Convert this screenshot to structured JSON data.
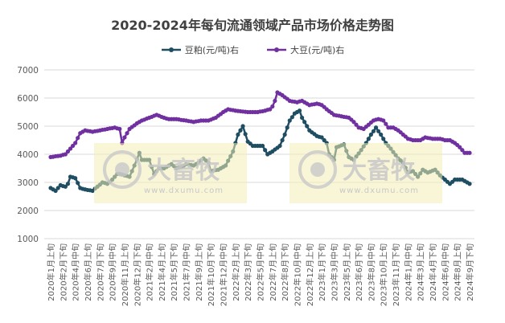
{
  "chart_data": {
    "type": "line",
    "title": "2020-2024年每旬流通领域产品市场价格走势图",
    "xlabel": "",
    "ylabel": "",
    "ylim": [
      1000,
      7000
    ],
    "y_ticks": [
      1000,
      2000,
      3000,
      4000,
      5000,
      6000,
      7000
    ],
    "grid": true,
    "legend": "top",
    "x_tick_every": 5,
    "x_tick_labels": [
      "2020年1月上旬",
      "2020年2月下旬",
      "2020年4月中旬",
      "2020年6月上旬",
      "2020年7月下旬",
      "2020年9月中旬",
      "2020年11月上旬",
      "2020年12月下旬",
      "2021年2月中旬",
      "2021年4月上旬",
      "2021年5月下旬",
      "2021年7月中旬",
      "2021年9月上旬",
      "2021年10月下旬",
      "2021年12月中旬",
      "2022年2月上旬",
      "2022年3月下旬",
      "2022年5月中旬",
      "2022年7月上旬",
      "2022年8月下旬",
      "2022年10月中旬",
      "2022年12月上旬",
      "2023年1月下旬",
      "2023年3月中旬",
      "2023年5月上旬",
      "2023年6月下旬",
      "2023年8月中旬",
      "2023年10月上旬",
      "2023年11月下旬",
      "2024年1月中旬",
      "2024年3月上旬",
      "2024年4月下旬",
      "2024年6月中旬",
      "2024年8月上旬",
      "2024年9月下旬"
    ],
    "series": [
      {
        "name": "豆粕(元/吨)右",
        "color": "#1f4e63",
        "values": [
          2800,
          2750,
          2700,
          2800,
          2900,
          2870,
          2850,
          2950,
          3200,
          3180,
          3150,
          2980,
          2800,
          2770,
          2750,
          2730,
          2720,
          2700,
          2780,
          2850,
          2920,
          3000,
          2980,
          2950,
          3020,
          3100,
          3200,
          3300,
          3300,
          3280,
          3250,
          3230,
          3200,
          3400,
          3600,
          3820,
          4050,
          3800,
          3800,
          3800,
          3800,
          3550,
          3300,
          3400,
          3500,
          3500,
          3500,
          3550,
          3600,
          3650,
          3580,
          3500,
          3520,
          3550,
          3600,
          3650,
          3630,
          3620,
          3600,
          3650,
          3700,
          3780,
          3850,
          3780,
          3700,
          3400,
          3420,
          3440,
          3450,
          3500,
          3550,
          3600,
          3770,
          3930,
          4100,
          4400,
          4700,
          4850,
          5000,
          4720,
          4450,
          4380,
          4300,
          4300,
          4300,
          4300,
          4300,
          4150,
          4000,
          4050,
          4100,
          4170,
          4230,
          4300,
          4500,
          4700,
          4950,
          5200,
          5320,
          5450,
          5500,
          5550,
          5300,
          5150,
          5000,
          4850,
          4780,
          4720,
          4650,
          4620,
          4600,
          4500,
          4400,
          4000,
          3900,
          3800,
          4250,
          4280,
          4320,
          4350,
          4120,
          3900,
          3850,
          3800,
          3920,
          4030,
          4150,
          4280,
          4400,
          4550,
          4700,
          4820,
          4950,
          4820,
          4700,
          4550,
          4400,
          4300,
          4200,
          4080,
          3970,
          3850,
          3780,
          3700,
          3520,
          3350,
          3380,
          3400,
          3300,
          3200,
          3320,
          3450,
          3400,
          3350,
          3380,
          3420,
          3450,
          3350,
          3250,
          3170,
          3100,
          3020,
          2950,
          3020,
          3100,
          3100,
          3100,
          3100,
          3050,
          3000,
          2950
        ]
      },
      {
        "name": "大豆(元/吨)右",
        "color": "#7030a0",
        "values": [
          3900,
          3910,
          3930,
          3940,
          3950,
          3980,
          4000,
          4100,
          4200,
          4300,
          4400,
          4580,
          4750,
          4800,
          4850,
          4830,
          4820,
          4800,
          4820,
          4830,
          4850,
          4870,
          4880,
          4900,
          4920,
          4930,
          4950,
          4920,
          4900,
          4400,
          4600,
          4750,
          4900,
          4970,
          5030,
          5100,
          5150,
          5200,
          5230,
          5270,
          5300,
          5330,
          5370,
          5400,
          5370,
          5330,
          5300,
          5270,
          5250,
          5250,
          5250,
          5250,
          5240,
          5220,
          5210,
          5200,
          5180,
          5170,
          5150,
          5170,
          5180,
          5200,
          5200,
          5200,
          5200,
          5230,
          5270,
          5300,
          5370,
          5430,
          5500,
          5550,
          5600,
          5580,
          5570,
          5550,
          5540,
          5530,
          5520,
          5510,
          5500,
          5500,
          5500,
          5500,
          5500,
          5520,
          5530,
          5550,
          5580,
          5600,
          5700,
          5900,
          6200,
          6150,
          6100,
          6030,
          5970,
          5900,
          5880,
          5870,
          5850,
          5880,
          5900,
          5850,
          5800,
          5750,
          5770,
          5780,
          5800,
          5780,
          5750,
          5680,
          5600,
          5530,
          5470,
          5400,
          5380,
          5370,
          5350,
          5330,
          5320,
          5300,
          5230,
          5150,
          5050,
          4950,
          4930,
          4900,
          4980,
          5050,
          5130,
          5200,
          5230,
          5250,
          5230,
          5200,
          5080,
          4950,
          4950,
          4950,
          4900,
          4850,
          4780,
          4700,
          4630,
          4550,
          4530,
          4500,
          4500,
          4500,
          4500,
          4550,
          4600,
          4580,
          4570,
          4550,
          4550,
          4550,
          4550,
          4530,
          4500,
          4500,
          4500,
          4450,
          4400,
          4330,
          4250,
          4150,
          4050,
          4050,
          4050
        ]
      }
    ]
  },
  "watermark": {
    "brand": "大畜牧",
    "url": "www.dxumu.com",
    "color": "#f3efb5"
  }
}
